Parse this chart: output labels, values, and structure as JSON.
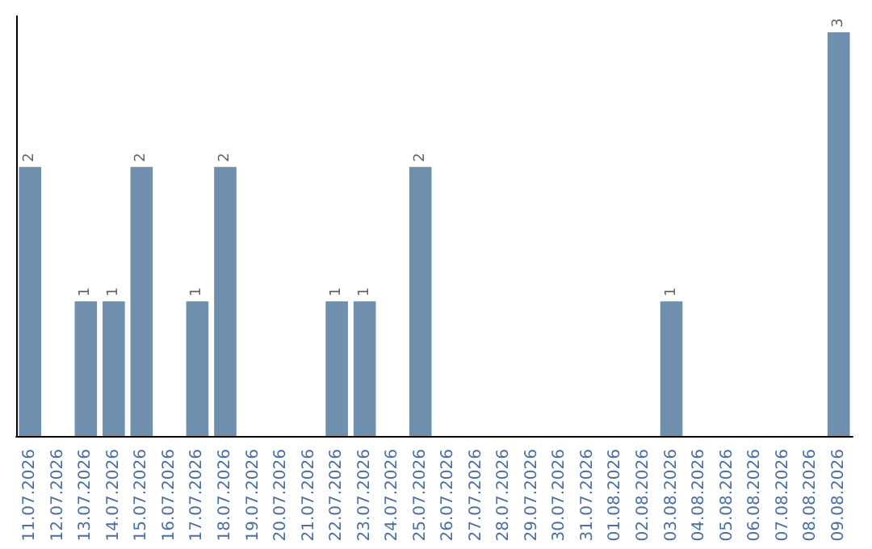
{
  "chart_data": {
    "type": "bar",
    "categories": [
      "11.07.2026",
      "12.07.2026",
      "13.07.2026",
      "14.07.2026",
      "15.07.2026",
      "16.07.2026",
      "17.07.2026",
      "18.07.2026",
      "19.07.2026",
      "20.07.2026",
      "21.07.2026",
      "22.07.2026",
      "23.07.2026",
      "24.07.2026",
      "25.07.2026",
      "26.07.2026",
      "27.07.2026",
      "28.07.2026",
      "29.07.2026",
      "30.07.2026",
      "31.07.2026",
      "01.08.2026",
      "02.08.2026",
      "03.08.2026",
      "04.08.2026",
      "05.08.2026",
      "06.08.2026",
      "07.08.2026",
      "08.08.2026",
      "09.08.2026"
    ],
    "values": [
      2,
      0,
      1,
      1,
      2,
      0,
      1,
      2,
      0,
      0,
      0,
      1,
      1,
      0,
      2,
      0,
      0,
      0,
      0,
      0,
      0,
      0,
      0,
      1,
      0,
      0,
      0,
      0,
      0,
      3
    ],
    "value_labels": [
      "2",
      null,
      "1",
      "1",
      "2",
      null,
      "1",
      "2",
      null,
      null,
      null,
      "1",
      "1",
      null,
      "2",
      null,
      null,
      null,
      null,
      null,
      null,
      null,
      null,
      "1",
      null,
      null,
      null,
      null,
      null,
      "3"
    ],
    "color": "#6f8faf"
  }
}
